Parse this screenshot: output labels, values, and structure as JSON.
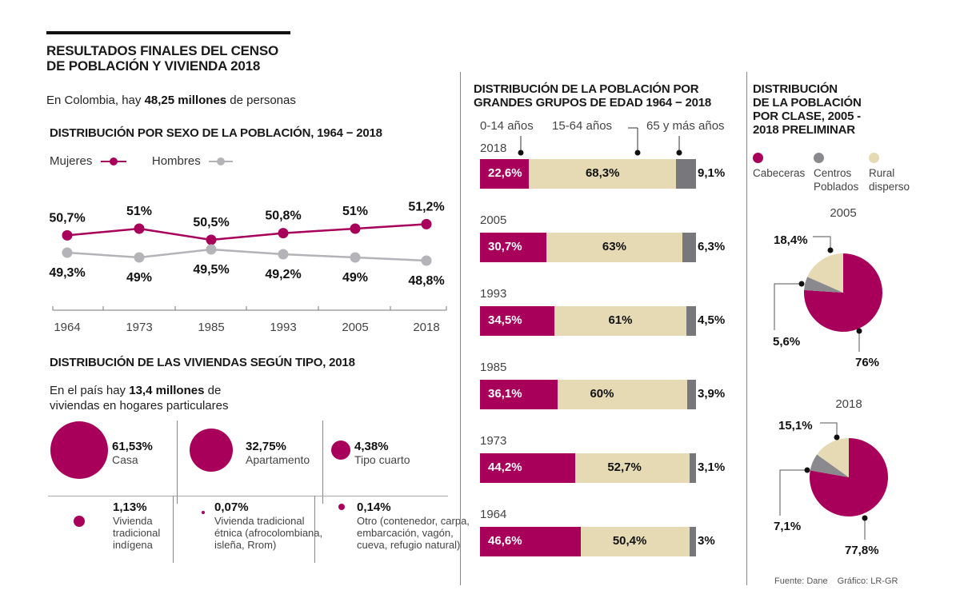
{
  "colors": {
    "primary": "#a8005a",
    "grey": "#b3b3b8",
    "beige": "#e6dab5",
    "dark_grey": "#78777c"
  },
  "header": {
    "title_line1": "RESULTADOS FINALES DEL CENSO",
    "title_line2": "DE POBLACIÓN Y VIVIENDA 2018",
    "intro_pre": "En Colombia, hay ",
    "intro_bold": "48,25 millones",
    "intro_post": " de personas"
  },
  "footer": {
    "source": "Fuente: Dane",
    "credit": "Gráfico: LR-GR"
  },
  "chart_data": [
    {
      "id": "sex",
      "type": "line",
      "title": "DISTRIBUCIÓN POR SEXO DE LA POBLACIÓN, 1964 − 2018",
      "x": [
        "1964",
        "1973",
        "1985",
        "1993",
        "2005",
        "2018"
      ],
      "series": [
        {
          "name": "Mujeres",
          "color": "#a8005a",
          "values": [
            50.7,
            51,
            50.5,
            50.8,
            51,
            51.2
          ],
          "labels": [
            "50,7%",
            "51%",
            "50,5%",
            "50,8%",
            "51%",
            "51,2%"
          ]
        },
        {
          "name": "Hombres",
          "color": "#b3b3b8",
          "values": [
            49.3,
            49,
            49.5,
            49.2,
            49,
            48.8
          ],
          "labels": [
            "49,3%",
            "49%",
            "49,5%",
            "49,2%",
            "49%",
            "48,8%"
          ]
        }
      ],
      "xlabel": "",
      "ylabel": "",
      "legend": "top-left",
      "grid": false
    },
    {
      "id": "viviendas",
      "type": "bubble",
      "title": "DISTRIBUCIÓN DE LAS VIVIENDAS SEGÚN TIPO, 2018",
      "subtitle_pre": "En el país hay ",
      "subtitle_bold": "13,4 millones",
      "subtitle_post": " de",
      "subtitle_line2": "viviendas en hogares particulares",
      "items": [
        {
          "value": 61.53,
          "label": "61,53%",
          "name": "Casa"
        },
        {
          "value": 32.75,
          "label": "32,75%",
          "name": "Apartamento"
        },
        {
          "value": 4.38,
          "label": "4,38%",
          "name": "Tipo cuarto"
        },
        {
          "value": 1.13,
          "label": "1,13%",
          "name": "Vivienda tradicional indígena",
          "lines": [
            "Vivienda",
            "tradicional",
            "indígena"
          ]
        },
        {
          "value": 0.07,
          "label": "0,07%",
          "name": "Vivienda tradicional étnica (afrocolombiana, isleña, Rrom)",
          "lines": [
            "Vivienda tradicional",
            "étnica (afrocolombiana,",
            "isleña, Rrom)"
          ]
        },
        {
          "value": 0.14,
          "label": "0,14%",
          "name": "Otro (contenedor, carpa, embarcación, vagón, cueva, refugio natural)",
          "lines": [
            "Otro (contenedor, carpa,",
            "embarcación, vagón,",
            "cueva, refugio natural)"
          ]
        }
      ]
    },
    {
      "id": "edad",
      "type": "bar",
      "stacked": true,
      "orientation": "horizontal",
      "title_line1": "DISTRIBUCIÓN DE LA POBLACIÓN POR",
      "title_line2": "GRANDES GRUPOS DE EDAD 1964 − 2018",
      "legend": [
        "0-14 años",
        "15-64 años",
        "65 y más años"
      ],
      "categories": [
        "2018",
        "2005",
        "1993",
        "1985",
        "1973",
        "1964"
      ],
      "series": [
        {
          "name": "0-14 años",
          "color": "#a8005a",
          "values": [
            22.6,
            30.7,
            34.5,
            36.1,
            44.2,
            46.6
          ],
          "labels": [
            "22,6%",
            "30,7%",
            "34,5%",
            "36,1%",
            "44,2%",
            "46,6%"
          ]
        },
        {
          "name": "15-64 años",
          "color": "#e6dab5",
          "values": [
            68.3,
            63,
            61,
            60,
            52.7,
            50.4
          ],
          "labels": [
            "68,3%",
            "63%",
            "61%",
            "60%",
            "52,7%",
            "50,4%"
          ]
        },
        {
          "name": "65 y más años",
          "color": "#78777c",
          "values": [
            9.1,
            6.3,
            4.5,
            3.9,
            3.1,
            3
          ],
          "labels": [
            "9,1%",
            "6,3%",
            "4,5%",
            "3,9%",
            "3,1%",
            "3%"
          ]
        }
      ],
      "xlim": [
        0,
        100
      ]
    },
    {
      "id": "clase",
      "type": "pie",
      "title_lines": [
        "DISTRIBUCIÓN",
        "DE LA POBLACIÓN",
        "POR CLASE, 2005 -",
        "2018 PRELIMINAR"
      ],
      "legend": [
        {
          "name": "Cabeceras",
          "lines": [
            "Cabeceras"
          ],
          "color": "#a8005a"
        },
        {
          "name": "Centros Poblados",
          "lines": [
            "Centros",
            "Poblados"
          ],
          "color": "#8a898e"
        },
        {
          "name": "Rural disperso",
          "lines": [
            "Rural",
            "disperso"
          ],
          "color": "#e6dab5"
        }
      ],
      "pies": [
        {
          "year": "2005",
          "values": [
            76,
            5.6,
            18.4
          ],
          "labels": [
            "76%",
            "5,6%",
            "18,4%"
          ]
        },
        {
          "year": "2018",
          "values": [
            77.8,
            7.1,
            15.1
          ],
          "labels": [
            "77,8%",
            "7,1%",
            "15,1%"
          ]
        }
      ]
    }
  ]
}
